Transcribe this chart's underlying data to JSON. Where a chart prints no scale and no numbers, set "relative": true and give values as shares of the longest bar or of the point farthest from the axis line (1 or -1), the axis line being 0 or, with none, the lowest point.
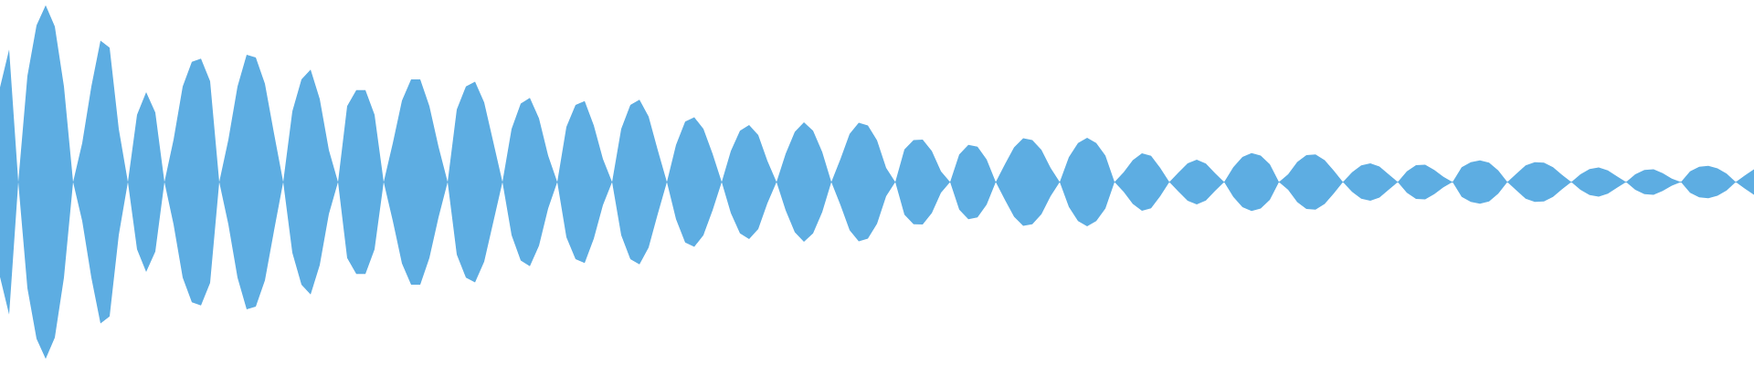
{
  "chart_data": {
    "type": "area",
    "relative": true,
    "categories": [
      null,
      null,
      null,
      null,
      null,
      null,
      null,
      null,
      null,
      null,
      null,
      null,
      null,
      null,
      null,
      null,
      null,
      null,
      null,
      null,
      null,
      null,
      null,
      null,
      null,
      null,
      null,
      null,
      null,
      null,
      null,
      null,
      null,
      null,
      null,
      null,
      null,
      null,
      null,
      null,
      null,
      null,
      null,
      null,
      null,
      null,
      null,
      null,
      null,
      null,
      null,
      null,
      null,
      null,
      null,
      null,
      null,
      null,
      null,
      null,
      null,
      null,
      null,
      null,
      null,
      null,
      null,
      null,
      null,
      null,
      null,
      null,
      null,
      null,
      null,
      null,
      null,
      null,
      null,
      null,
      null,
      null,
      null,
      null,
      null,
      null,
      null,
      null,
      null,
      null,
      null,
      null,
      null,
      null,
      null,
      null,
      null,
      null,
      null,
      null,
      null,
      null,
      null,
      null,
      null,
      null,
      null,
      null,
      null,
      null,
      null,
      null,
      null,
      null,
      null,
      null,
      null,
      null,
      null,
      null,
      null,
      null,
      null,
      null,
      null,
      null,
      null,
      null,
      null,
      null,
      null,
      null,
      null,
      null,
      null,
      null,
      null,
      null,
      null,
      null,
      null,
      null,
      null,
      null,
      null,
      null,
      null,
      null,
      null,
      null,
      null,
      null,
      null,
      null,
      null,
      null,
      null,
      null,
      null,
      null,
      null,
      null,
      null,
      null,
      null,
      null,
      null,
      null,
      null,
      null,
      null,
      null,
      null,
      null,
      null,
      null,
      null,
      null,
      null,
      null,
      null,
      null,
      null,
      null,
      null,
      null,
      null,
      null,
      null,
      null,
      null,
      null,
      null
    ],
    "ref_lines": [
      {
        "axis": "y",
        "value": 0,
        "color": "#5dade2"
      }
    ],
    "series": [
      {
        "color": "#5dade2",
        "values": [
          0.536,
          0.75,
          0,
          0.6,
          0.886,
          1,
          0.88,
          0.54,
          0,
          0.22,
          0.54,
          0.8,
          0.76,
          0.3,
          0,
          0.38,
          0.508,
          0.394,
          0,
          0.24,
          0.54,
          0.68,
          0.698,
          0.57,
          0,
          0.24,
          0.54,
          0.72,
          0.704,
          0.556,
          0.274,
          0,
          0.4,
          0.58,
          0.636,
          0.47,
          0.18,
          0,
          0.43,
          0.52,
          0.52,
          0.38,
          0,
          0.22,
          0.46,
          0.58,
          0.58,
          0.43,
          0.2,
          0,
          0.41,
          0.54,
          0.568,
          0.45,
          0.226,
          0,
          0.3,
          0.444,
          0.476,
          0.36,
          0.15,
          0,
          0.312,
          0.436,
          0.458,
          0.32,
          0.13,
          0,
          0.3,
          0.436,
          0.466,
          0.37,
          0.18,
          0,
          0.21,
          0.342,
          0.366,
          0.3,
          0.16,
          0,
          0.176,
          0.29,
          0.322,
          0.266,
          0.12,
          0,
          0.16,
          0.284,
          0.338,
          0.29,
          0.17,
          0,
          0.13,
          0.272,
          0.336,
          0.32,
          0.236,
          0.08,
          0,
          0.184,
          0.238,
          0.24,
          0.176,
          0.06,
          0,
          0.156,
          0.21,
          0.2,
          0.128,
          0,
          0.1,
          0.196,
          0.248,
          0.238,
          0.182,
          0.08,
          0,
          0.14,
          0.22,
          0.25,
          0.22,
          0.15,
          0,
          0.056,
          0.124,
          0.162,
          0.148,
          0.08,
          0,
          0.054,
          0.106,
          0.126,
          0.104,
          0.05,
          0,
          0.084,
          0.142,
          0.164,
          0.15,
          0.1,
          0,
          0.044,
          0.114,
          0.152,
          0.156,
          0.124,
          0.064,
          0,
          0.056,
          0.094,
          0.106,
          0.088,
          0.044,
          0,
          0.06,
          0.096,
          0.098,
          0.068,
          0.03,
          0,
          0.084,
          0.112,
          0.122,
          0.11,
          0.066,
          0,
          0.048,
          0.094,
          0.112,
          0.11,
          0.084,
          0.04,
          0,
          0.044,
          0.074,
          0.082,
          0.066,
          0.032,
          0,
          0.044,
          0.068,
          0.072,
          0.05,
          0.02,
          0,
          0.06,
          0.086,
          0.092,
          0.078,
          0.048,
          0,
          0.038,
          0.072
        ]
      },
      {
        "color": "#5dade2",
        "values": [
          -0.536,
          -0.75,
          0,
          -0.6,
          -0.886,
          -1,
          -0.88,
          -0.54,
          0,
          -0.22,
          -0.54,
          -0.8,
          -0.76,
          -0.3,
          0,
          -0.38,
          -0.508,
          -0.394,
          0,
          -0.24,
          -0.54,
          -0.68,
          -0.698,
          -0.57,
          0,
          -0.24,
          -0.54,
          -0.72,
          -0.704,
          -0.556,
          -0.274,
          0,
          -0.4,
          -0.58,
          -0.636,
          -0.47,
          -0.18,
          0,
          -0.43,
          -0.52,
          -0.52,
          -0.38,
          0,
          -0.22,
          -0.46,
          -0.58,
          -0.58,
          -0.43,
          -0.2,
          0,
          -0.41,
          -0.54,
          -0.568,
          -0.45,
          -0.226,
          0,
          -0.3,
          -0.444,
          -0.476,
          -0.36,
          -0.15,
          0,
          -0.312,
          -0.436,
          -0.458,
          -0.32,
          -0.13,
          0,
          -0.3,
          -0.436,
          -0.466,
          -0.37,
          -0.18,
          0,
          -0.21,
          -0.342,
          -0.366,
          -0.3,
          -0.16,
          0,
          -0.176,
          -0.29,
          -0.322,
          -0.266,
          -0.12,
          0,
          -0.16,
          -0.284,
          -0.338,
          -0.29,
          -0.17,
          0,
          -0.13,
          -0.272,
          -0.336,
          -0.32,
          -0.236,
          -0.08,
          0,
          -0.184,
          -0.238,
          -0.24,
          -0.176,
          -0.06,
          0,
          -0.156,
          -0.21,
          -0.2,
          -0.128,
          0,
          -0.1,
          -0.196,
          -0.248,
          -0.238,
          -0.182,
          -0.08,
          0,
          -0.14,
          -0.22,
          -0.25,
          -0.22,
          -0.15,
          0,
          -0.056,
          -0.124,
          -0.162,
          -0.148,
          -0.08,
          0,
          -0.054,
          -0.106,
          -0.126,
          -0.104,
          -0.05,
          0,
          -0.084,
          -0.142,
          -0.164,
          -0.15,
          -0.1,
          0,
          -0.044,
          -0.114,
          -0.152,
          -0.156,
          -0.124,
          -0.064,
          0,
          -0.056,
          -0.094,
          -0.106,
          -0.088,
          -0.044,
          0,
          -0.06,
          -0.096,
          -0.098,
          -0.068,
          -0.03,
          0,
          -0.084,
          -0.112,
          -0.122,
          -0.11,
          -0.066,
          0,
          -0.048,
          -0.094,
          -0.112,
          -0.11,
          -0.084,
          -0.04,
          0,
          -0.044,
          -0.074,
          -0.082,
          -0.066,
          -0.032,
          0,
          -0.044,
          -0.068,
          -0.072,
          -0.05,
          -0.02,
          0,
          -0.06,
          -0.086,
          -0.092,
          -0.078,
          -0.048,
          0,
          -0.038,
          -0.072
        ]
      }
    ]
  }
}
